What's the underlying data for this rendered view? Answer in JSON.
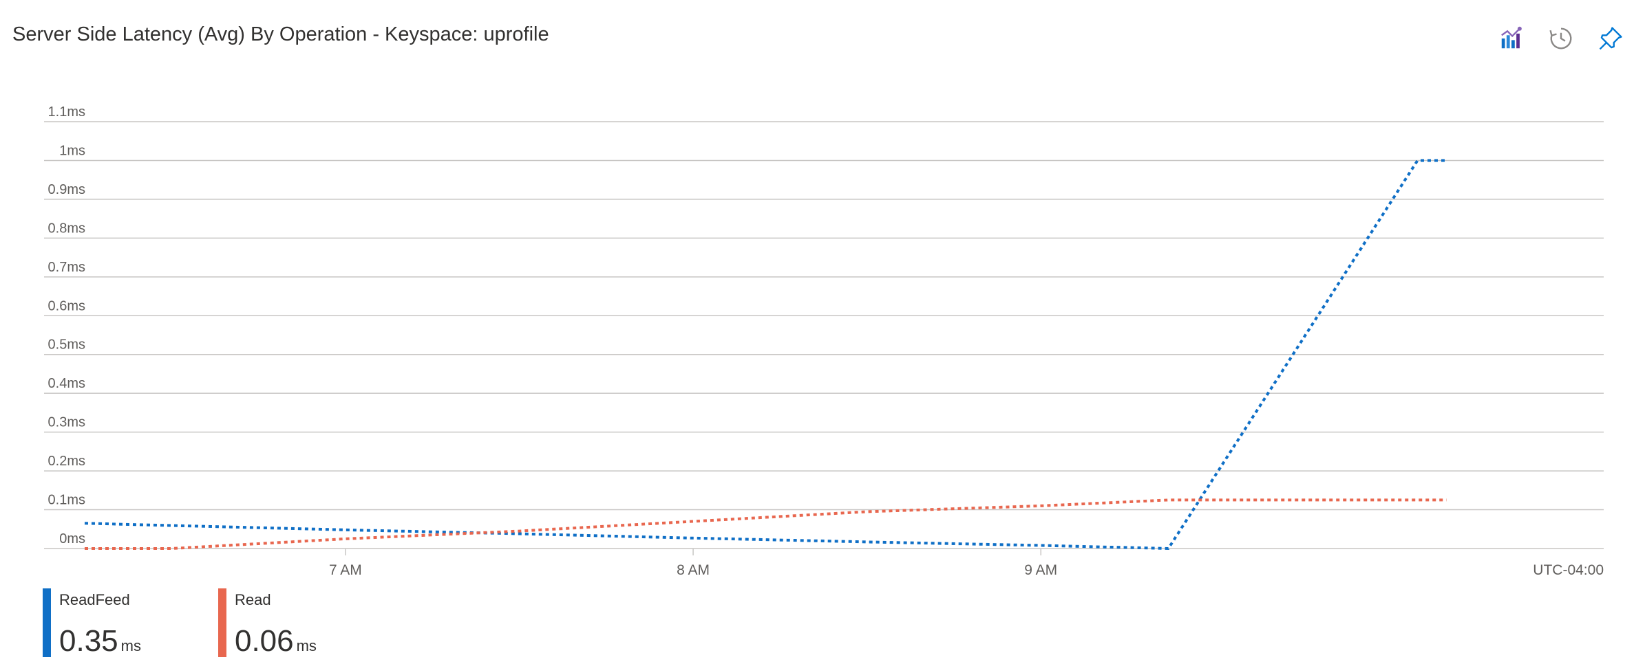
{
  "header": {
    "title": "Server Side Latency (Avg) By Operation - Keyspace: uprofile",
    "actions": [
      {
        "name": "metrics-chart-icon",
        "label": "Open in Metrics"
      },
      {
        "name": "history-icon",
        "label": "History"
      },
      {
        "name": "pin-icon",
        "label": "Pin to dashboard"
      }
    ]
  },
  "colors": {
    "readfeed": "#0f6fc6",
    "read": "#e8674f",
    "grid": "#c8c6c4",
    "accent": "#0078d4"
  },
  "chart_data": {
    "type": "line",
    "title": "Server Side Latency (Avg) By Operation - Keyspace: uprofile",
    "xlabel": "",
    "ylabel": "",
    "x_ticks": [
      "7 AM",
      "8 AM",
      "9 AM"
    ],
    "timezone_label": "UTC-04:00",
    "y_ticks": [
      "0ms",
      "0.1ms",
      "0.2ms",
      "0.3ms",
      "0.4ms",
      "0.5ms",
      "0.6ms",
      "0.7ms",
      "0.8ms",
      "0.9ms",
      "1ms",
      "1.1ms"
    ],
    "ylim": [
      0,
      1.1
    ],
    "xlim": [
      "6:15",
      "10:30"
    ],
    "grid": true,
    "line_style": "dotted",
    "series": [
      {
        "name": "ReadFeed",
        "color": "#0f6fc6",
        "x": [
          "6:15",
          "7:00",
          "7:30",
          "8:00",
          "8:30",
          "9:00",
          "9:22",
          "10:05",
          "10:10"
        ],
        "values": [
          0.065,
          0.048,
          0.038,
          0.027,
          0.017,
          0.008,
          0.0,
          1.0,
          1.0
        ]
      },
      {
        "name": "Read",
        "color": "#e8674f",
        "x": [
          "6:15",
          "6:30",
          "7:00",
          "7:30",
          "8:00",
          "8:30",
          "9:00",
          "9:22",
          "10:10"
        ],
        "values": [
          0.0,
          0.0,
          0.025,
          0.045,
          0.07,
          0.095,
          0.11,
          0.125,
          0.125
        ]
      }
    ]
  },
  "legend": [
    {
      "name": "ReadFeed",
      "value": "0.35",
      "unit": "ms",
      "color": "#0f6fc6"
    },
    {
      "name": "Read",
      "value": "0.06",
      "unit": "ms",
      "color": "#e8674f"
    }
  ]
}
